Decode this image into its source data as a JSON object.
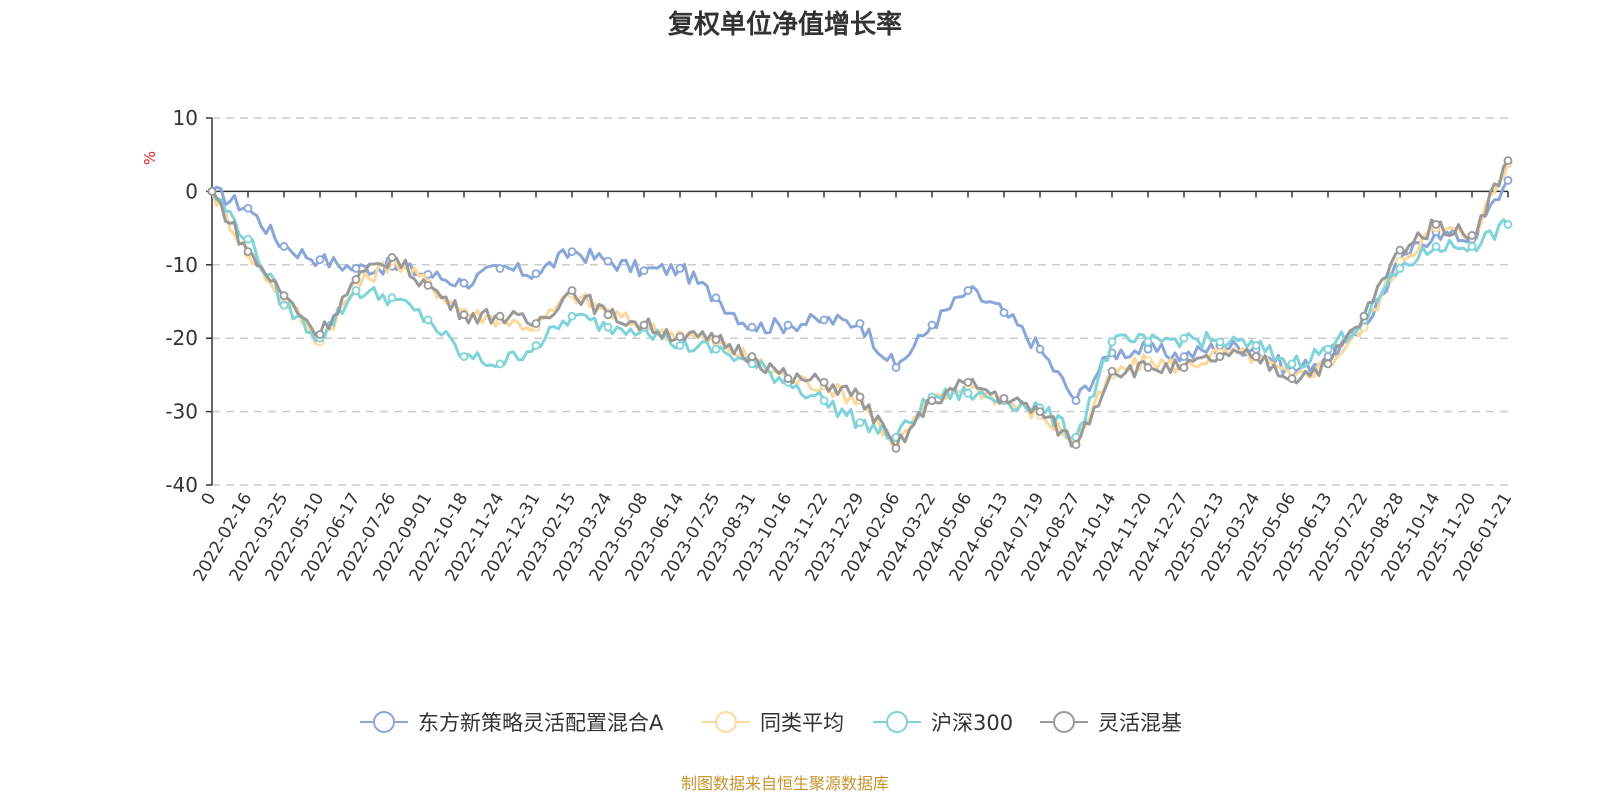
{
  "chart_data": {
    "type": "line",
    "title": "复权单位净值增长率",
    "ylabel": "%",
    "xlabel": "",
    "ylim": [
      -40,
      10
    ],
    "yticks": [
      10,
      0,
      -10,
      -20,
      -30,
      -40
    ],
    "grid": true,
    "legend_position": "bottom",
    "categories": [
      "0",
      "2022-02-16",
      "2022-03-25",
      "2022-05-10",
      "2022-06-17",
      "2022-07-26",
      "2022-09-01",
      "2022-10-18",
      "2022-11-24",
      "2022-12-31",
      "2023-02-15",
      "2023-03-24",
      "2023-05-08",
      "2023-06-14",
      "2023-07-25",
      "2023-08-31",
      "2023-10-16",
      "2023-11-22",
      "2023-12-29",
      "2024-02-06",
      "2024-03-22",
      "2024-05-06",
      "2024-06-13",
      "2024-07-19",
      "2024-08-27",
      "2024-10-14",
      "2024-11-20",
      "2024-12-27",
      "2025-02-13",
      "2025-03-24",
      "2025-05-06",
      "2025-06-13",
      "2025-07-22",
      "2025-08-28",
      "2025-10-14",
      "2025-11-20",
      "2026-01-21"
    ],
    "series": [
      {
        "name": "东方新策略灵活配置混合A",
        "color": "#8aa6d9",
        "values": [
          0,
          -2.3,
          -7.5,
          -9.3,
          -10.5,
          -10.2,
          -11.3,
          -12.5,
          -10.5,
          -11.2,
          -8.2,
          -9.5,
          -10.8,
          -10.5,
          -14.5,
          -18.5,
          -18.2,
          -17.5,
          -18.0,
          -24.0,
          -18.2,
          -13.5,
          -16.5,
          -21.5,
          -28.5,
          -22.0,
          -21.5,
          -22.5,
          -21.0,
          -21.5,
          -24.5,
          -22.5,
          -18.5,
          -9.5,
          -5.5,
          -6.5,
          1.5
        ]
      },
      {
        "name": "同类平均",
        "color": "#fcd99b",
        "values": [
          0,
          -8.5,
          -14.5,
          -20.5,
          -13.0,
          -9.5,
          -12.5,
          -16.5,
          -17.5,
          -18.5,
          -14.0,
          -16.5,
          -18.5,
          -19.5,
          -20.5,
          -23.0,
          -25.5,
          -26.5,
          -28.5,
          -34.5,
          -28.5,
          -26.5,
          -28.5,
          -30.5,
          -34.0,
          -25.0,
          -23.0,
          -24.0,
          -22.0,
          -22.5,
          -25.5,
          -23.5,
          -18.5,
          -9.5,
          -5.0,
          -6.0,
          3.8
        ]
      },
      {
        "name": "沪深300",
        "color": "#7fd3d9",
        "values": [
          0,
          -6.5,
          -15.5,
          -20.0,
          -13.5,
          -14.5,
          -17.5,
          -22.5,
          -23.5,
          -21.0,
          -17.0,
          -18.5,
          -18.5,
          -21.0,
          -21.5,
          -23.5,
          -26.0,
          -28.5,
          -31.5,
          -33.5,
          -28.0,
          -27.5,
          -28.5,
          -29.5,
          -33.5,
          -20.5,
          -20.5,
          -20.0,
          -20.5,
          -21.0,
          -23.5,
          -21.5,
          -17.5,
          -10.5,
          -7.5,
          -7.5,
          -4.5
        ]
      },
      {
        "name": "灵活混基",
        "color": "#999999",
        "values": [
          0,
          -8.2,
          -14.2,
          -19.5,
          -12.0,
          -9.0,
          -12.8,
          -16.8,
          -17.0,
          -18.0,
          -13.5,
          -16.8,
          -18.2,
          -19.8,
          -20.2,
          -22.5,
          -25.5,
          -26.0,
          -28.0,
          -35.0,
          -28.5,
          -26.0,
          -28.2,
          -30.0,
          -34.5,
          -24.5,
          -24.0,
          -24.0,
          -22.5,
          -22.5,
          -25.5,
          -23.5,
          -17.0,
          -8.0,
          -4.5,
          -6.0,
          4.2
        ]
      }
    ]
  },
  "source_note": "制图数据来自恒生聚源数据库"
}
